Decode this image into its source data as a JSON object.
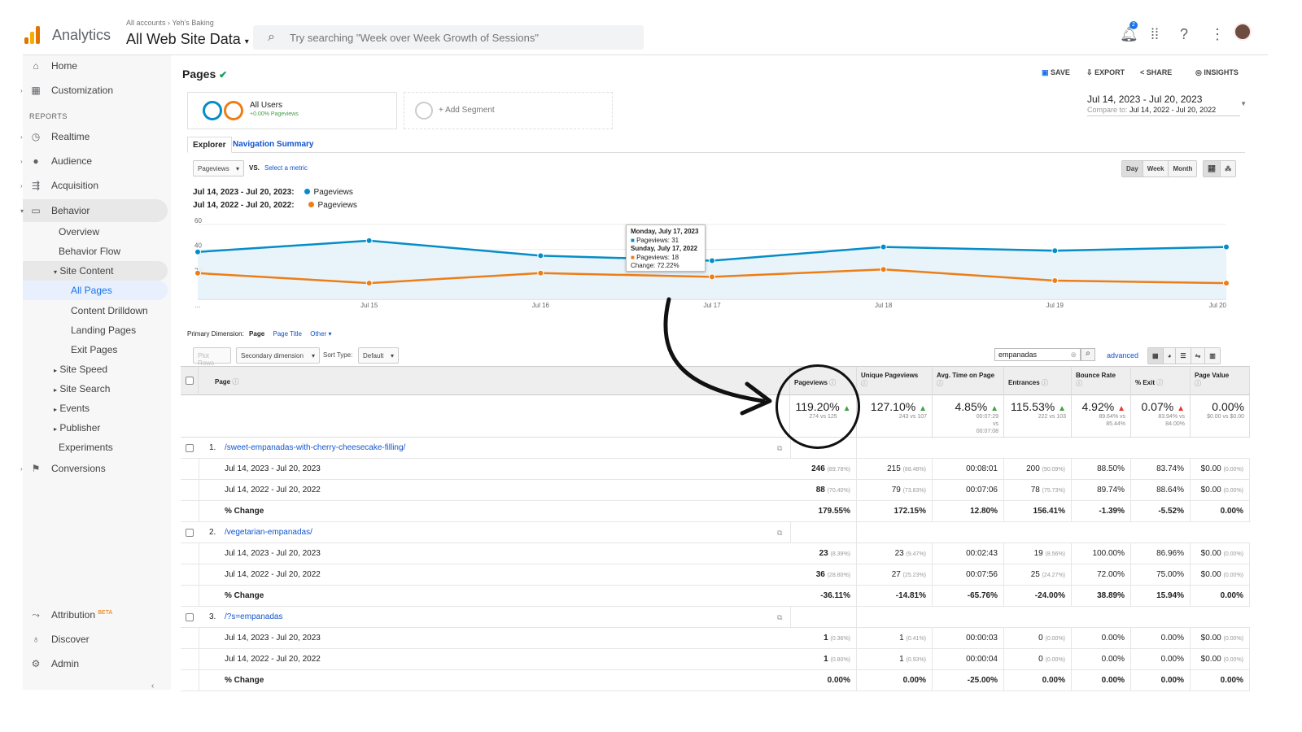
{
  "header": {
    "brand": "Analytics",
    "account_path": "All accounts › Yeh's Baking",
    "view": "All Web Site Data",
    "search_placeholder": "Try searching \"Week over Week Growth of Sessions\"",
    "notification_count": "2"
  },
  "sidebar": {
    "home": "Home",
    "customization": "Customization",
    "reports_label": "REPORTS",
    "realtime": "Realtime",
    "audience": "Audience",
    "acquisition": "Acquisition",
    "behavior": "Behavior",
    "overview": "Overview",
    "behavior_flow": "Behavior Flow",
    "site_content": "Site Content",
    "all_pages": "All Pages",
    "content_drilldown": "Content Drilldown",
    "landing_pages": "Landing Pages",
    "exit_pages": "Exit Pages",
    "site_speed": "Site Speed",
    "site_search": "Site Search",
    "events": "Events",
    "publisher": "Publisher",
    "experiments": "Experiments",
    "conversions": "Conversions",
    "attribution": "Attribution",
    "beta": "BETA",
    "discover": "Discover",
    "admin": "Admin"
  },
  "page": {
    "title": "Pages",
    "save": "SAVE",
    "export": "EXPORT",
    "share": "SHARE",
    "insights": "INSIGHTS",
    "segment_name": "All Users",
    "segment_sub": "+0.00% Pageviews",
    "add_segment": "+ Add Segment",
    "date_range": "Jul 14, 2023 - Jul 20, 2023",
    "compare_label": "Compare to:",
    "compare_range": "Jul 14, 2022 - Jul 20, 2022",
    "tab_explorer": "Explorer",
    "tab_nav_summary": "Navigation Summary",
    "metric_select": "Pageviews",
    "vs": "VS.",
    "select_metric": "Select a metric",
    "legend_current_range": "Jul 14, 2023 - Jul 20, 2023:",
    "legend_prev_range": "Jul 14, 2022 - Jul 20, 2022:",
    "legend_metric": "Pageviews",
    "day": "Day",
    "week": "Week",
    "month": "Month",
    "primary_dimension": "Primary Dimension:",
    "dim_page": "Page",
    "dim_page_title": "Page Title",
    "dim_other": "Other",
    "plot_rows": "Plot Rows",
    "secondary_dimension": "Secondary dimension",
    "sort_type_label": "Sort Type:",
    "sort_type": "Default",
    "filter_value": "empanadas",
    "advanced": "advanced"
  },
  "tooltip": {
    "line1": "Monday, July 17, 2023",
    "line2": "Pageviews: 31",
    "line3": "Sunday, July 17, 2022",
    "line4": "Pageviews: 18",
    "line5": "Change: 72.22%"
  },
  "chart_data": {
    "type": "line",
    "x": [
      "Jul 14",
      "Jul 15",
      "Jul 16",
      "Jul 17",
      "Jul 18",
      "Jul 19",
      "Jul 20"
    ],
    "tick_labels": [
      "...",
      "Jul 15",
      "Jul 16",
      "Jul 17",
      "Jul 18",
      "Jul 19",
      "Jul 20"
    ],
    "series": [
      {
        "name": "Pageviews",
        "values": [
          38,
          47,
          35,
          31,
          42,
          39,
          42
        ],
        "color": "#058dc7"
      },
      {
        "name": "Pageviews",
        "values": [
          21,
          13,
          21,
          18,
          24,
          15,
          13
        ],
        "color": "#ed7e17"
      }
    ],
    "ylim": [
      0,
      60
    ],
    "yticks": [
      20,
      40,
      60
    ]
  },
  "table": {
    "headers": {
      "page": "Page",
      "pageviews": "Pageviews",
      "unique": "Unique Pageviews",
      "avgtime": "Avg. Time on Page",
      "entrances": "Entrances",
      "bounce": "Bounce Rate",
      "exit": "% Exit",
      "value": "Page Value"
    },
    "totals": {
      "pageviews": {
        "v": "119.20%",
        "s": "274 vs 125"
      },
      "unique": {
        "v": "127.10%",
        "s": "243 vs 107"
      },
      "avgtime": {
        "v": "4.85%",
        "s": "00:07:29 vs 00:07:08"
      },
      "entrances": {
        "v": "115.53%",
        "s": "222 vs 103"
      },
      "bounce": {
        "v": "4.92%",
        "s": "89.64% vs 85.44%"
      },
      "exit": {
        "v": "0.07%",
        "s": "83.94% vs 84.00%"
      },
      "value": {
        "v": "0.00%",
        "s": "$0.00 vs $0.00"
      }
    },
    "rows": [
      {
        "num": "1.",
        "page": "/sweet-empanadas-with-cherry-cheesecake-filling/",
        "cur": {
          "label": "Jul 14, 2023 - Jul 20, 2023",
          "pv": "246",
          "pvp": "(89.78%)",
          "u": "215",
          "up": "(88.48%)",
          "t": "00:08:01",
          "e": "200",
          "ep": "(90.09%)",
          "b": "88.50%",
          "x": "83.74%",
          "val": "$0.00",
          "valp": "(0.00%)"
        },
        "prev": {
          "label": "Jul 14, 2022 - Jul 20, 2022",
          "pv": "88",
          "pvp": "(70.40%)",
          "u": "79",
          "up": "(73.83%)",
          "t": "00:07:06",
          "e": "78",
          "ep": "(75.73%)",
          "b": "89.74%",
          "x": "88.64%",
          "val": "$0.00",
          "valp": "(0.00%)"
        },
        "chg": {
          "label": "% Change",
          "pv": "179.55%",
          "u": "172.15%",
          "t": "12.80%",
          "e": "156.41%",
          "b": "-1.39%",
          "x": "-5.52%",
          "val": "0.00%"
        }
      },
      {
        "num": "2.",
        "page": "/vegetarian-empanadas/",
        "cur": {
          "label": "Jul 14, 2023 - Jul 20, 2023",
          "pv": "23",
          "pvp": "(8.39%)",
          "u": "23",
          "up": "(9.47%)",
          "t": "00:02:43",
          "e": "19",
          "ep": "(8.56%)",
          "b": "100.00%",
          "x": "86.96%",
          "val": "$0.00",
          "valp": "(0.00%)"
        },
        "prev": {
          "label": "Jul 14, 2022 - Jul 20, 2022",
          "pv": "36",
          "pvp": "(28.80%)",
          "u": "27",
          "up": "(25.23%)",
          "t": "00:07:56",
          "e": "25",
          "ep": "(24.27%)",
          "b": "72.00%",
          "x": "75.00%",
          "val": "$0.00",
          "valp": "(0.00%)"
        },
        "chg": {
          "label": "% Change",
          "pv": "-36.11%",
          "u": "-14.81%",
          "t": "-65.76%",
          "e": "-24.00%",
          "b": "38.89%",
          "x": "15.94%",
          "val": "0.00%"
        }
      },
      {
        "num": "3.",
        "page": "/?s=empanadas",
        "cur": {
          "label": "Jul 14, 2023 - Jul 20, 2023",
          "pv": "1",
          "pvp": "(0.36%)",
          "u": "1",
          "up": "(0.41%)",
          "t": "00:00:03",
          "e": "0",
          "ep": "(0.00%)",
          "b": "0.00%",
          "x": "0.00%",
          "val": "$0.00",
          "valp": "(0.00%)"
        },
        "prev": {
          "label": "Jul 14, 2022 - Jul 20, 2022",
          "pv": "1",
          "pvp": "(0.80%)",
          "u": "1",
          "up": "(0.93%)",
          "t": "00:00:04",
          "e": "0",
          "ep": "(0.00%)",
          "b": "0.00%",
          "x": "0.00%",
          "val": "$0.00",
          "valp": "(0.00%)"
        },
        "chg": {
          "label": "% Change",
          "pv": "0.00%",
          "u": "0.00%",
          "t": "-25.00%",
          "e": "0.00%",
          "b": "0.00%",
          "x": "0.00%",
          "val": "0.00%"
        }
      }
    ]
  }
}
